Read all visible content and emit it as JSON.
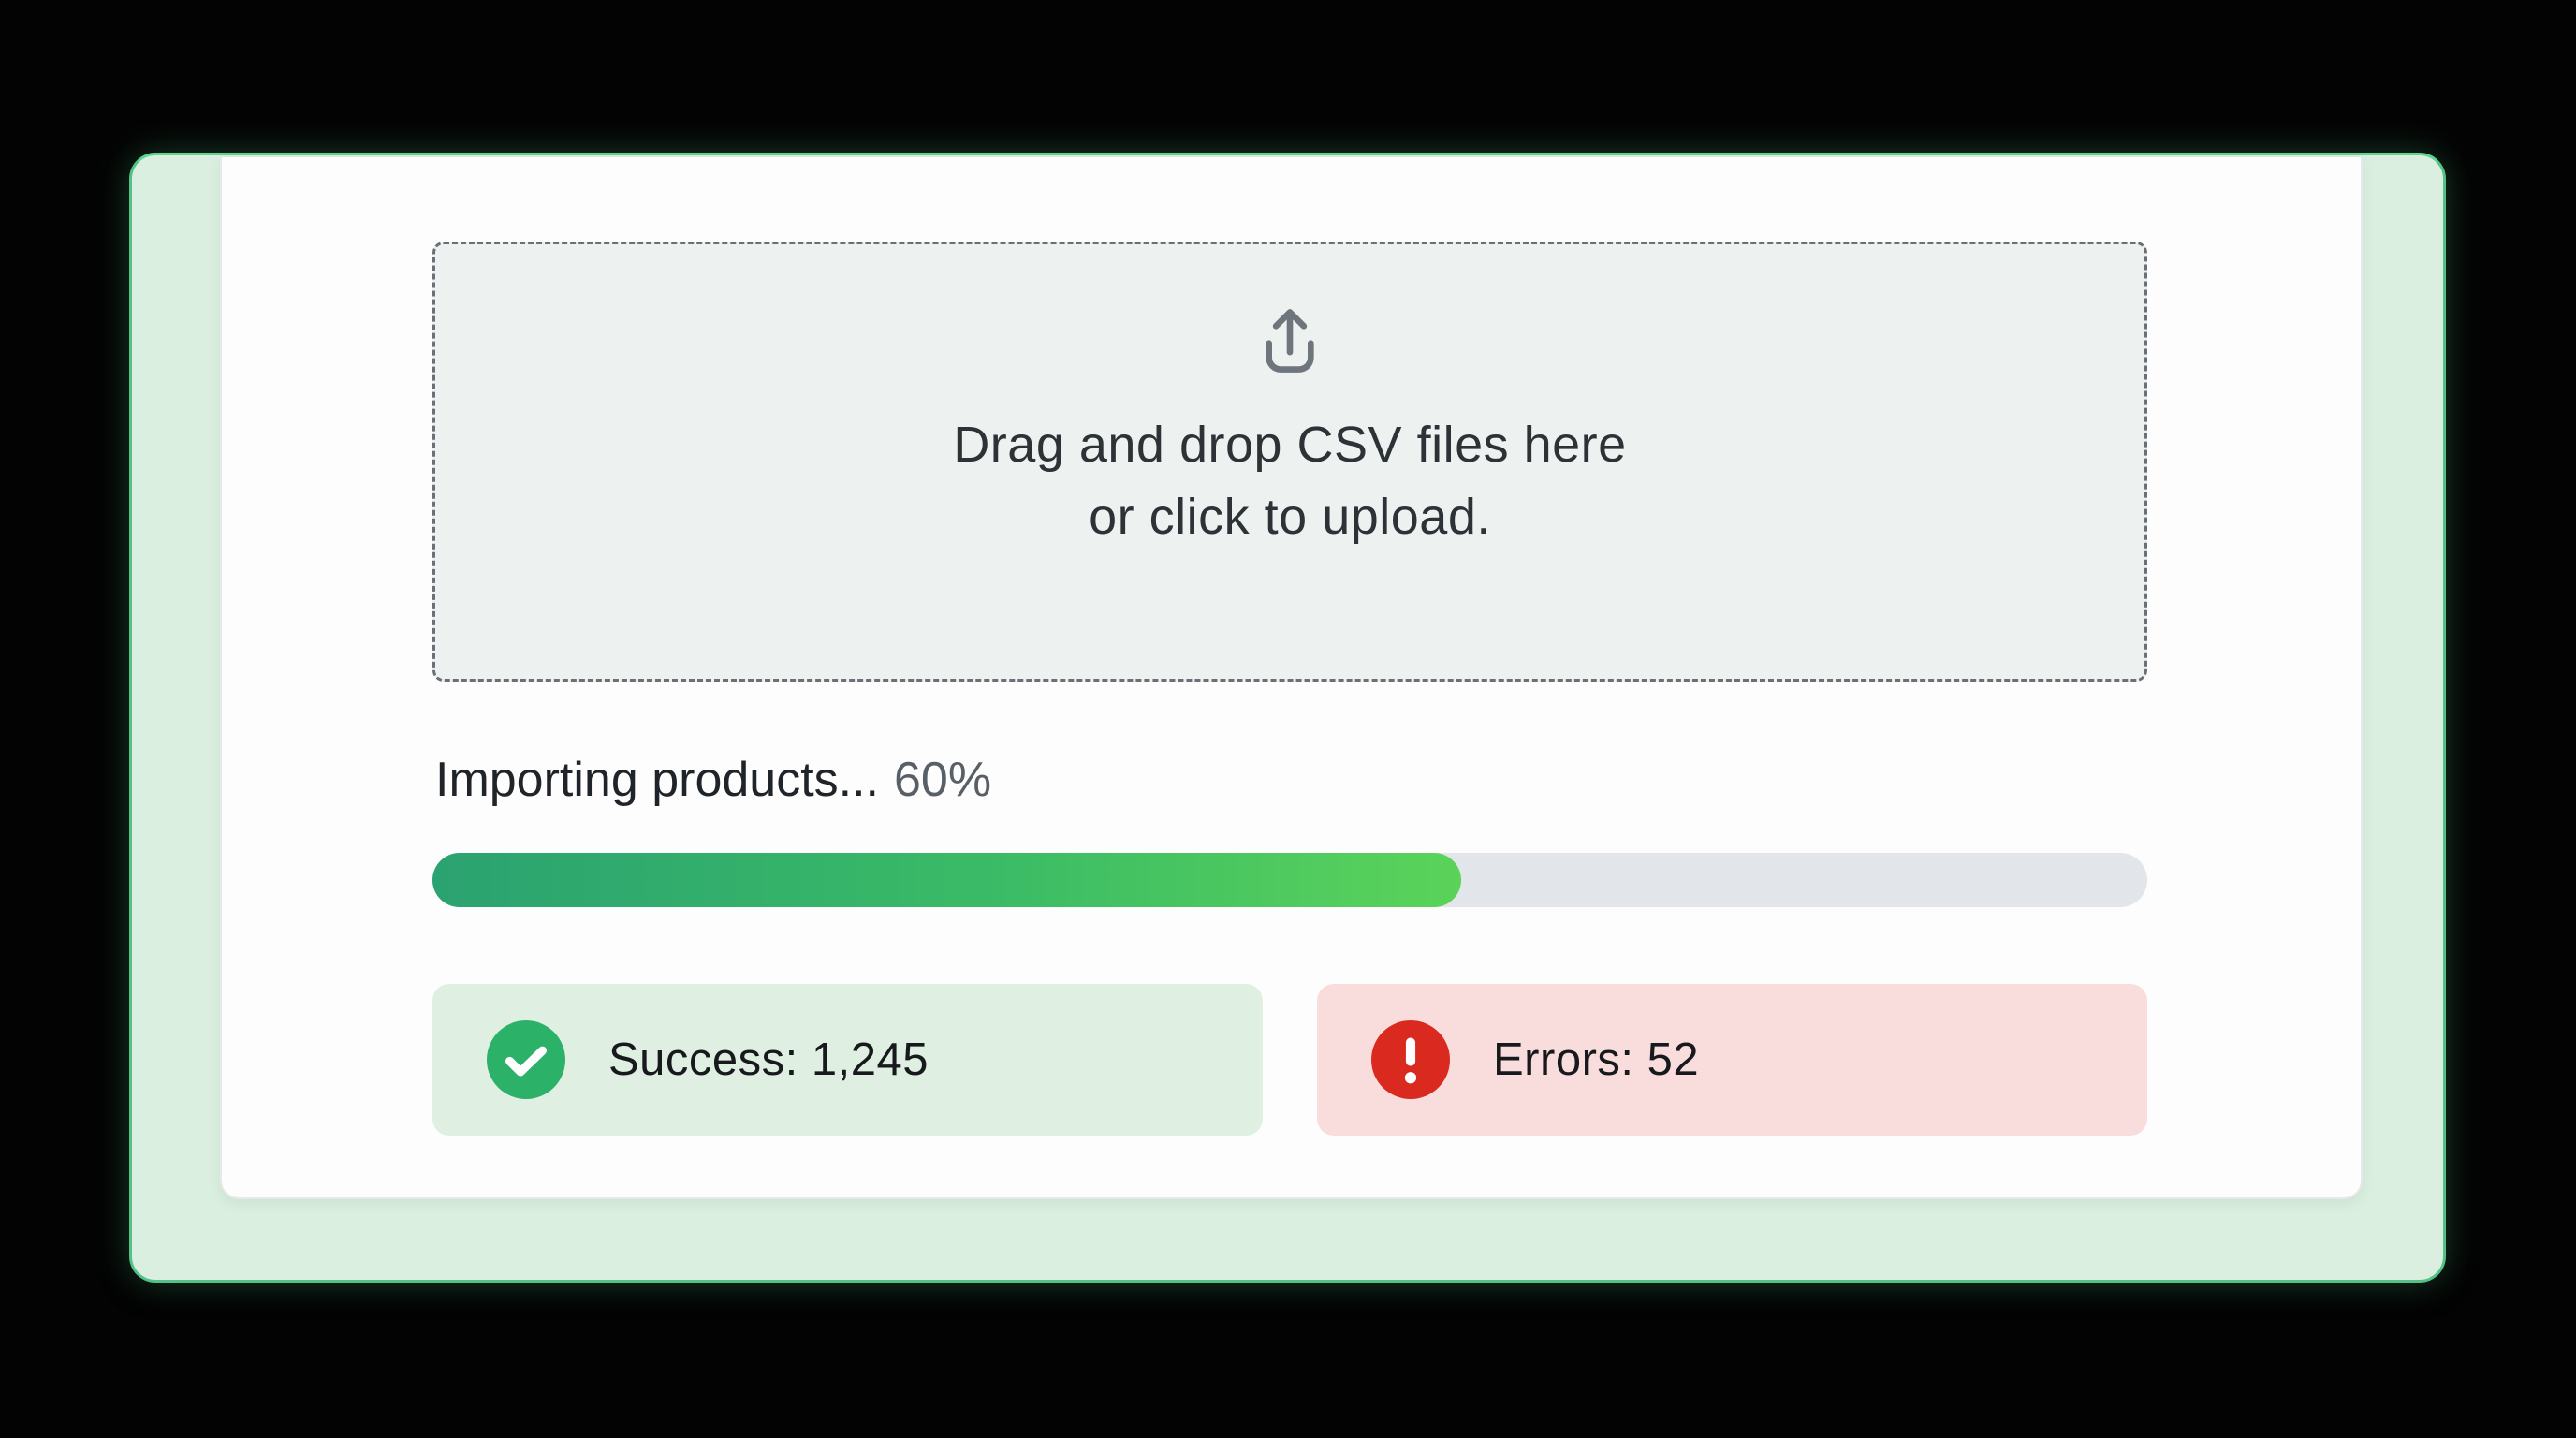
{
  "modal": {
    "dropzone": {
      "icon": "upload-icon",
      "line1": "Drag and drop CSV files here",
      "line2": "or click to upload."
    },
    "progress": {
      "label": "Importing products...",
      "percent": 60,
      "percent_text": "60%"
    },
    "stats": {
      "success": {
        "icon": "check-icon",
        "label": "Success: 1,245",
        "count": "1,245"
      },
      "errors": {
        "icon": "alert-icon",
        "label": "Errors: 52",
        "count": "52"
      }
    },
    "colors": {
      "page_bg": "#030303",
      "frame_bg": "#daefdf",
      "frame_border": "#54c285",
      "panel_bg": "#fcfdfc",
      "dropzone_bg": "#edf2f1",
      "dropzone_border": "#6a7076",
      "dropzone_text": "#2d3237",
      "upload_icon": "#6f757c",
      "label_text": "#1f242a",
      "percent_text": "#585f66",
      "track": "#e2e5e9",
      "fill_gradient_start": "#2ba271",
      "fill_gradient_end": "#5bd35a",
      "success_bg": "#dff0e3",
      "success_icon": "#2cb169",
      "error_bg": "#f9dddd",
      "error_icon": "#da291e",
      "stat_text": "#17191c"
    }
  }
}
